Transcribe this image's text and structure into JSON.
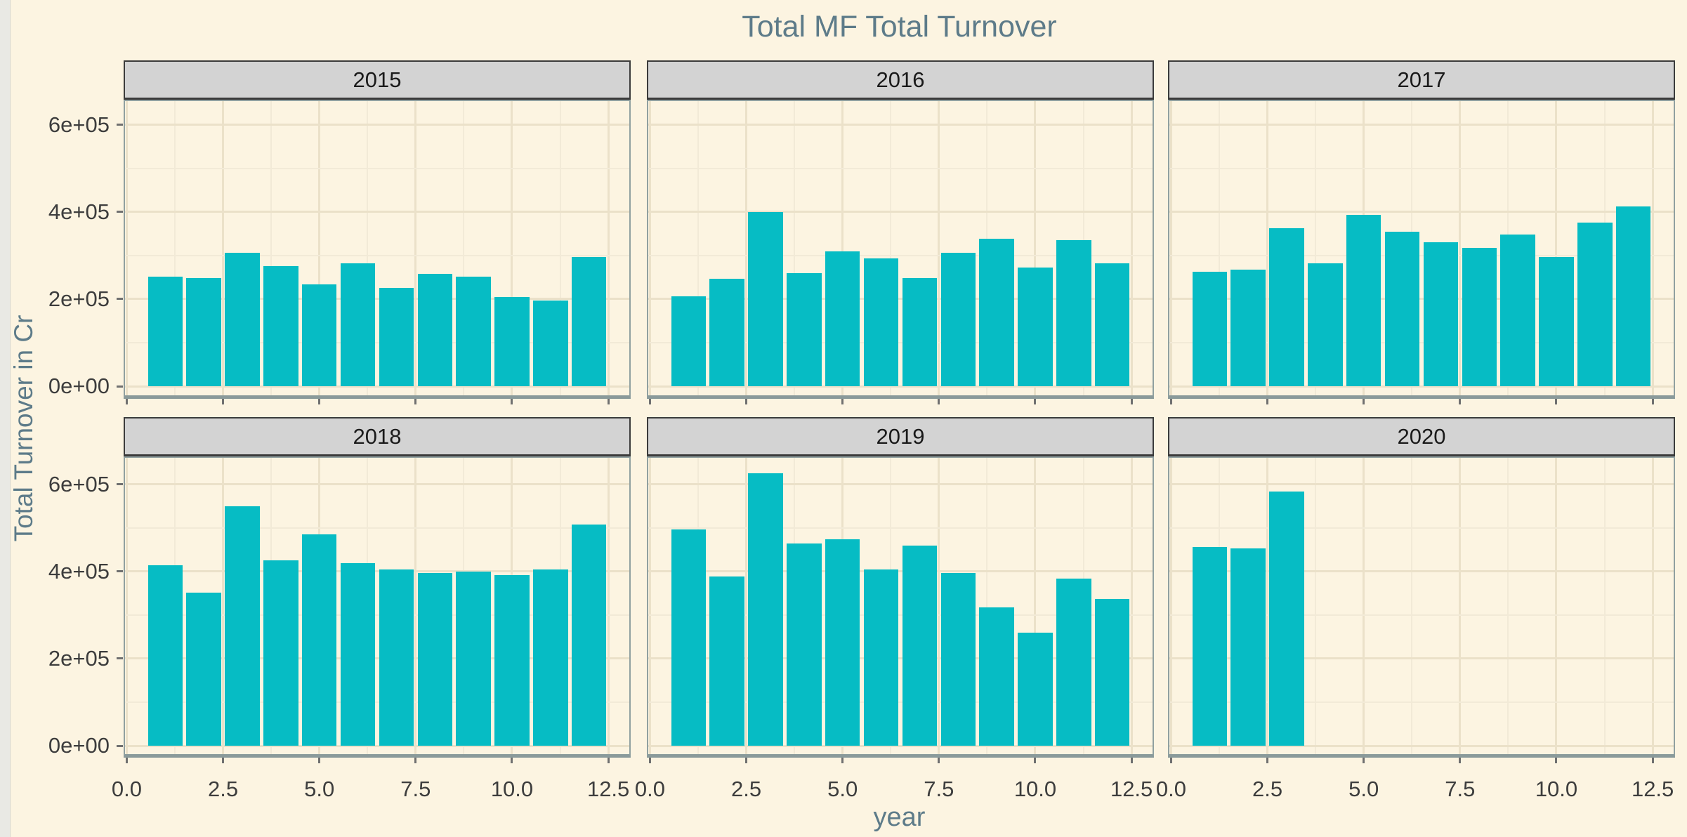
{
  "title": "Total MF Total Turnover",
  "axis": {
    "x_title": "year",
    "y_title": "Total Turnover in Cr",
    "x_tick_labels": [
      "0.0",
      "2.5",
      "5.0",
      "7.5",
      "10.0",
      "12.5"
    ],
    "y_tick_labels": [
      "0e+00",
      "2e+05",
      "4e+05",
      "6e+05"
    ]
  },
  "colors": {
    "background": "#fcf4e1",
    "bar_fill": "#06bcc4",
    "strip_background": "#d3d3d3",
    "strip_border": "#3b3b3b",
    "strip_text": "#1a1a1a",
    "panel_border": "#90a0a0",
    "grid_major": "#ebe1c9",
    "grid_minor": "#f2ead7",
    "title_text": "#5d7b89",
    "axis_text": "#3d3d3d"
  },
  "chart_data": {
    "type": "bar",
    "title": "Total MF Total Turnover",
    "xlabel": "year",
    "ylabel": "Total Turnover in Cr",
    "facet_layout": "2 rows x 3 cols",
    "x_breaks": [
      0.0,
      2.5,
      5.0,
      7.5,
      10.0,
      12.5
    ],
    "y_breaks": [
      0,
      200000,
      400000,
      600000
    ],
    "xlim": [
      0,
      12.5
    ],
    "ylim": [
      0,
      660000
    ],
    "grid": true,
    "legend_position": "none",
    "x": [
      1,
      2,
      3,
      4,
      5,
      6,
      7,
      8,
      9,
      10,
      11,
      12
    ],
    "facets": [
      {
        "label": "2015",
        "values": [
          252000,
          249000,
          306000,
          276000,
          233000,
          282000,
          225000,
          258000,
          251000,
          204000,
          196000,
          297000
        ]
      },
      {
        "label": "2016",
        "values": [
          206000,
          247000,
          400000,
          259000,
          309000,
          294000,
          249000,
          306000,
          339000,
          272000,
          336000,
          282000
        ]
      },
      {
        "label": "2017",
        "values": [
          263000,
          268000,
          363000,
          282000,
          393000,
          355000,
          330000,
          318000,
          348000,
          297000,
          375000,
          413000
        ]
      },
      {
        "label": "2018",
        "values": [
          414000,
          351000,
          549000,
          426000,
          485000,
          419000,
          404000,
          397000,
          399000,
          392000,
          404000,
          508000
        ]
      },
      {
        "label": "2019",
        "values": [
          497000,
          388000,
          626000,
          465000,
          474000,
          404000,
          459000,
          397000,
          318000,
          259000,
          384000,
          337000
        ]
      },
      {
        "label": "2020",
        "values": [
          456000,
          453000,
          584000
        ]
      }
    ]
  }
}
